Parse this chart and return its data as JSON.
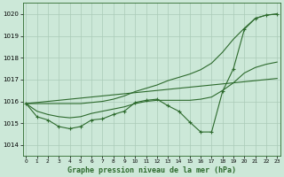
{
  "title": "Graphe pression niveau de la mer (hPa)",
  "background_color": "#cce8d8",
  "grid_color": "#aacbb8",
  "line_color": "#2d6a2d",
  "ylim": [
    1013.5,
    1020.5
  ],
  "yticks": [
    1014,
    1015,
    1016,
    1017,
    1018,
    1019,
    1020
  ],
  "xlim": [
    -0.3,
    23.3
  ],
  "x_labels": [
    "0",
    "1",
    "2",
    "3",
    "4",
    "5",
    "6",
    "7",
    "8",
    "9",
    "10",
    "11",
    "12",
    "13",
    "14",
    "15",
    "16",
    "17",
    "18",
    "19",
    "20",
    "21",
    "22",
    "23"
  ],
  "series_main": [
    1015.9,
    1015.3,
    1015.15,
    1014.85,
    1014.75,
    1014.85,
    1015.15,
    1015.2,
    1015.4,
    1015.55,
    1015.95,
    1016.05,
    1016.1,
    1015.8,
    1015.55,
    1015.05,
    1014.6,
    1014.6,
    1016.45,
    1017.5,
    1019.3,
    1019.8,
    1019.95,
    1020.0
  ],
  "series_smooth": [
    1015.9,
    1015.55,
    1015.4,
    1015.3,
    1015.25,
    1015.3,
    1015.45,
    1015.55,
    1015.65,
    1015.75,
    1015.9,
    1016.0,
    1016.05,
    1016.05,
    1016.05,
    1016.05,
    1016.1,
    1016.2,
    1016.5,
    1016.85,
    1017.3,
    1017.55,
    1017.7,
    1017.8
  ],
  "series_trend": [
    1015.9,
    1015.95,
    1016.0,
    1016.05,
    1016.1,
    1016.15,
    1016.2,
    1016.25,
    1016.3,
    1016.35,
    1016.4,
    1016.45,
    1016.5,
    1016.55,
    1016.6,
    1016.65,
    1016.7,
    1016.75,
    1016.8,
    1016.85,
    1016.9,
    1016.95,
    1017.0,
    1017.05
  ],
  "series_upper": [
    1015.9,
    1015.9,
    1015.9,
    1015.9,
    1015.9,
    1015.9,
    1015.95,
    1016.0,
    1016.1,
    1016.25,
    1016.45,
    1016.6,
    1016.75,
    1016.95,
    1017.1,
    1017.25,
    1017.45,
    1017.75,
    1018.25,
    1018.85,
    1019.35,
    1019.8,
    1019.95,
    1020.0
  ]
}
